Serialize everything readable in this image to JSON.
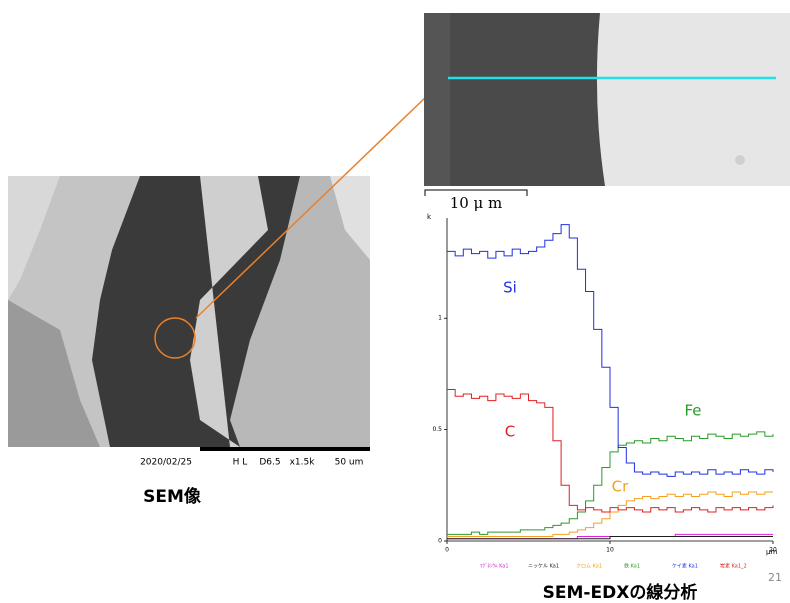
{
  "slide": {
    "sem_image": {
      "date": "2020/02/25",
      "mode": "H L",
      "distance": "D6.5",
      "magnification": "x1.5k",
      "scale": "50 um",
      "caption": "SEM像"
    },
    "zoom_image": {
      "scale": "10 μ m"
    },
    "title": "SEM-EDXの線分析",
    "page_number": "21"
  },
  "chart_data": {
    "type": "line",
    "ylabel": "k",
    "xlabel": "μm",
    "x": [
      0,
      0.5,
      1,
      1.5,
      2,
      2.5,
      3,
      3.5,
      4,
      4.5,
      5,
      5.5,
      6,
      6.5,
      7,
      7.5,
      8,
      8.5,
      9,
      9.5,
      10,
      10.5,
      11,
      11.5,
      12,
      12.5,
      13,
      13.5,
      14,
      14.5,
      15,
      15.5,
      16,
      16.5,
      17,
      17.5,
      18,
      18.5,
      19,
      19.5,
      20
    ],
    "xlim": [
      0,
      20
    ],
    "xticks": [
      0,
      10,
      20
    ],
    "ylim": [
      0,
      1.45
    ],
    "yticks": [
      0,
      0.5,
      1
    ],
    "series": [
      {
        "name": "ﾏｸﾞﾈｼｳﾑ Ka1",
        "color": "#e020e0",
        "values": [
          0.01,
          0.01,
          0.01,
          0.01,
          0.01,
          0.01,
          0.01,
          0.01,
          0.01,
          0.01,
          0.01,
          0.01,
          0.01,
          0.01,
          0.01,
          0.01,
          0.02,
          0.02,
          0.02,
          0.02,
          0.02,
          0.02,
          0.02,
          0.02,
          0.02,
          0.02,
          0.02,
          0.02,
          0.03,
          0.03,
          0.03,
          0.03,
          0.03,
          0.03,
          0.03,
          0.03,
          0.03,
          0.03,
          0.03,
          0.03,
          0.03
        ]
      },
      {
        "name": "ニッケル Ka1",
        "color": "#202020",
        "values": [
          0.01,
          0.01,
          0.01,
          0.01,
          0.01,
          0.01,
          0.01,
          0.01,
          0.01,
          0.01,
          0.01,
          0.01,
          0.01,
          0.01,
          0.01,
          0.01,
          0.01,
          0.01,
          0.01,
          0.01,
          0.02,
          0.02,
          0.02,
          0.02,
          0.02,
          0.02,
          0.02,
          0.02,
          0.02,
          0.02,
          0.02,
          0.02,
          0.02,
          0.02,
          0.02,
          0.02,
          0.02,
          0.02,
          0.02,
          0.02,
          0.02
        ]
      },
      {
        "name": "クロム Ka1",
        "color": "#f5a020",
        "values": [
          0.02,
          0.02,
          0.02,
          0.02,
          0.02,
          0.02,
          0.02,
          0.02,
          0.02,
          0.02,
          0.02,
          0.02,
          0.02,
          0.03,
          0.03,
          0.04,
          0.05,
          0.06,
          0.08,
          0.1,
          0.13,
          0.16,
          0.18,
          0.19,
          0.2,
          0.19,
          0.2,
          0.21,
          0.2,
          0.21,
          0.2,
          0.21,
          0.22,
          0.21,
          0.2,
          0.22,
          0.21,
          0.22,
          0.21,
          0.22,
          0.22
        ]
      },
      {
        "name": "鉄 Ka1",
        "color": "#2a9a2a",
        "values": [
          0.03,
          0.03,
          0.03,
          0.04,
          0.03,
          0.04,
          0.04,
          0.04,
          0.04,
          0.05,
          0.05,
          0.05,
          0.06,
          0.07,
          0.08,
          0.1,
          0.13,
          0.18,
          0.25,
          0.33,
          0.4,
          0.43,
          0.44,
          0.45,
          0.44,
          0.46,
          0.45,
          0.47,
          0.46,
          0.45,
          0.47,
          0.46,
          0.48,
          0.47,
          0.46,
          0.48,
          0.47,
          0.48,
          0.49,
          0.47,
          0.48
        ]
      },
      {
        "name": "ケイ素 Ka1",
        "color": "#2030e0",
        "values": [
          1.3,
          1.28,
          1.31,
          1.29,
          1.3,
          1.27,
          1.3,
          1.28,
          1.31,
          1.29,
          1.3,
          1.32,
          1.35,
          1.38,
          1.42,
          1.36,
          1.22,
          1.12,
          0.95,
          0.78,
          0.6,
          0.42,
          0.35,
          0.31,
          0.3,
          0.31,
          0.3,
          0.29,
          0.31,
          0.3,
          0.31,
          0.3,
          0.32,
          0.3,
          0.31,
          0.3,
          0.32,
          0.31,
          0.3,
          0.32,
          0.31
        ]
      },
      {
        "name": "炭素 Ka1_2",
        "color": "#e02020",
        "values": [
          0.68,
          0.65,
          0.66,
          0.64,
          0.65,
          0.63,
          0.66,
          0.65,
          0.64,
          0.66,
          0.63,
          0.62,
          0.6,
          0.45,
          0.25,
          0.16,
          0.14,
          0.15,
          0.14,
          0.13,
          0.15,
          0.14,
          0.15,
          0.14,
          0.13,
          0.15,
          0.14,
          0.15,
          0.13,
          0.14,
          0.15,
          0.14,
          0.13,
          0.15,
          0.14,
          0.15,
          0.14,
          0.15,
          0.14,
          0.15,
          0.16
        ]
      }
    ],
    "annotations": [
      {
        "text": "Si",
        "color": "#2030e0"
      },
      {
        "text": "C",
        "color": "#e02020"
      },
      {
        "text": "Fe",
        "color": "#2a9a2a"
      },
      {
        "text": "Cr",
        "color": "#f5a020"
      }
    ]
  }
}
